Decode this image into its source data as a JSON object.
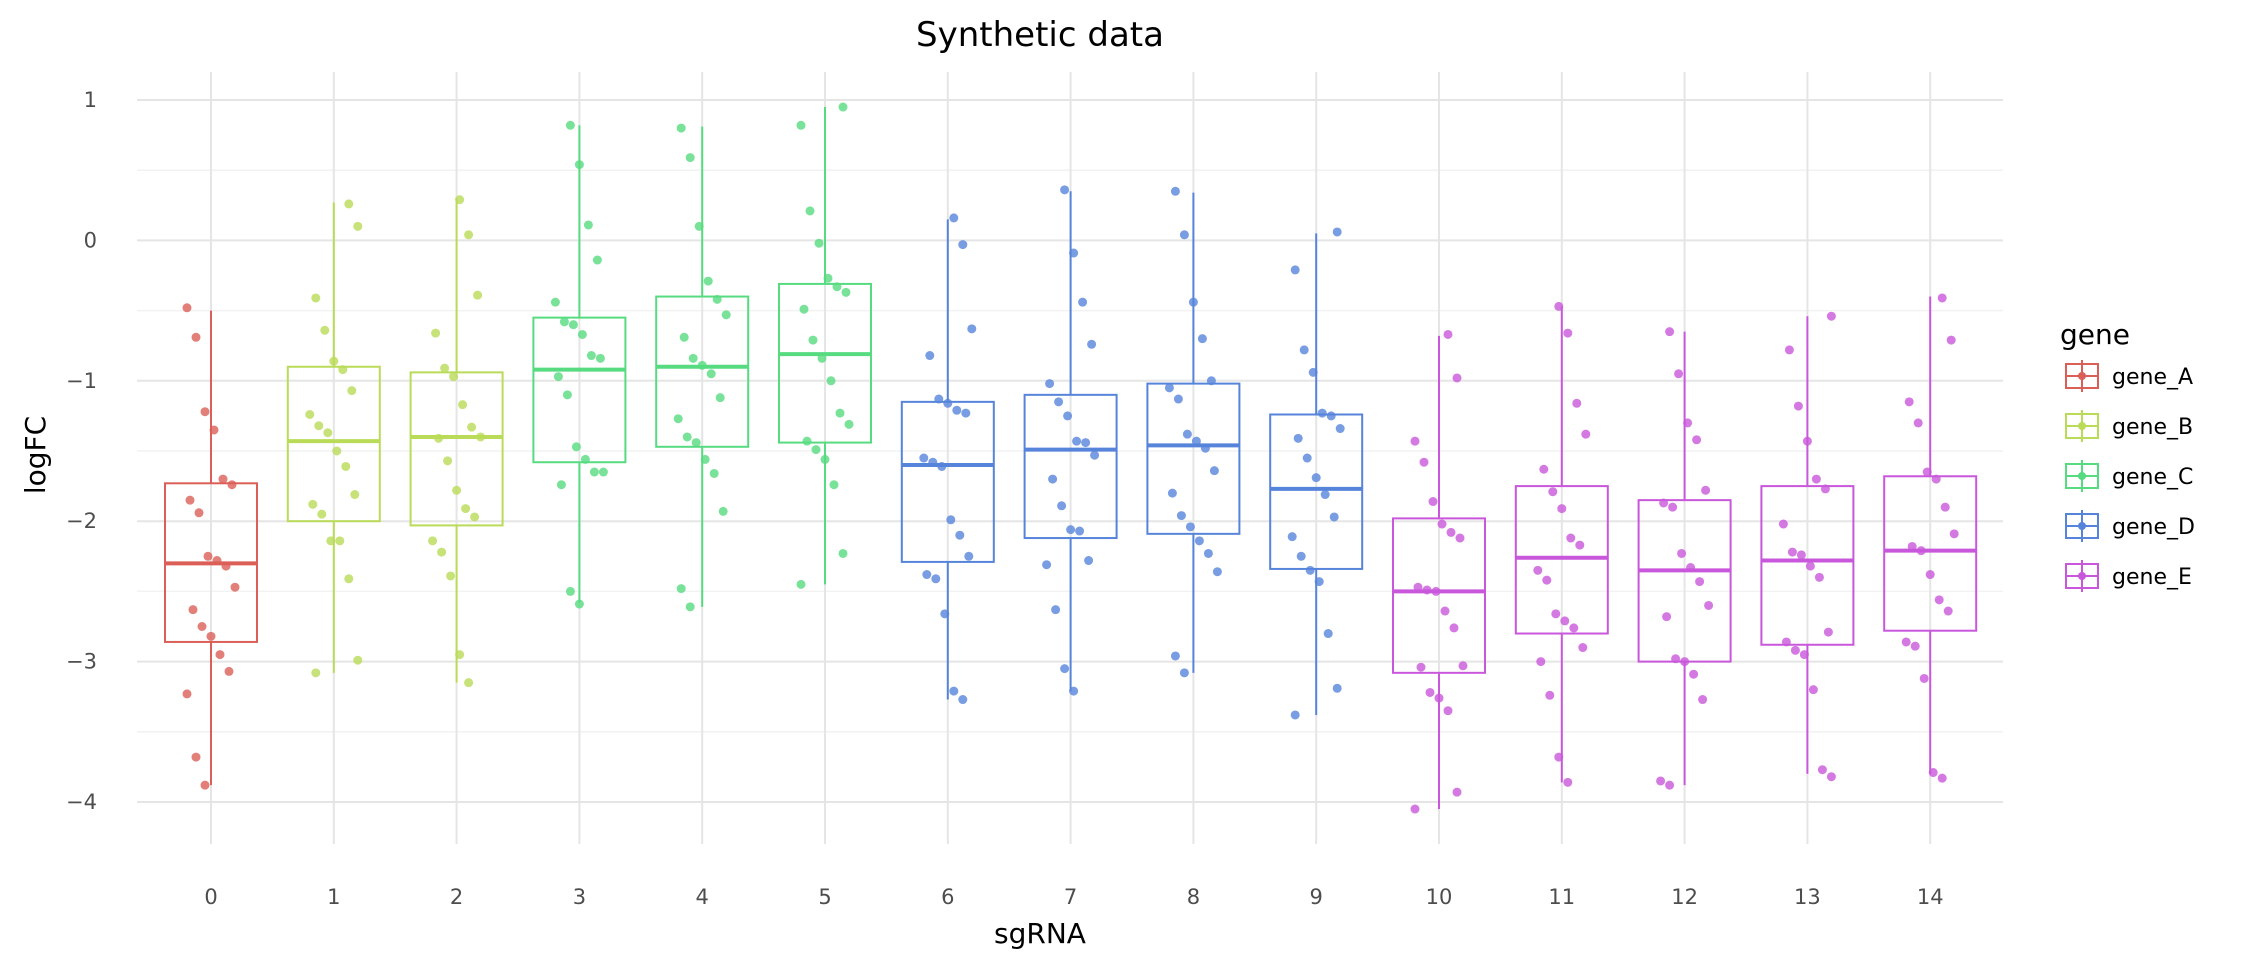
{
  "chart_data": {
    "type": "box",
    "title": "Synthetic data",
    "xlabel": "sgRNA",
    "ylabel": "logFC",
    "ylim": [
      -4.3,
      1.2
    ],
    "y_ticks": [
      1,
      0,
      -1,
      -2,
      -3,
      -4
    ],
    "y_tick_labels": [
      "1",
      "0",
      "−1",
      "−2",
      "−3",
      "−4"
    ],
    "grid": true,
    "legend": {
      "title": "gene",
      "position": "right"
    },
    "series": [
      {
        "name": "gene_A",
        "color": "#db5f57"
      },
      {
        "name": "gene_B",
        "color": "#b9db57"
      },
      {
        "name": "gene_C",
        "color": "#57db80"
      },
      {
        "name": "gene_D",
        "color": "#5784db"
      },
      {
        "name": "gene_E",
        "color": "#c957db"
      }
    ],
    "categories": [
      {
        "label": "0",
        "gene": "gene_A",
        "whisker_low": -3.88,
        "q1": -2.86,
        "median": -2.3,
        "q3": -1.73,
        "whisker_high": -0.5,
        "points": [
          -0.48,
          -0.69,
          -1.22,
          -1.35,
          -1.7,
          -1.74,
          -1.85,
          -1.94,
          -2.25,
          -2.28,
          -2.32,
          -2.47,
          -2.63,
          -2.75,
          -2.82,
          -2.95,
          -3.07,
          -3.23,
          -3.68,
          -3.88
        ]
      },
      {
        "label": "1",
        "gene": "gene_B",
        "whisker_low": -3.08,
        "q1": -2.0,
        "median": -1.43,
        "q3": -0.9,
        "whisker_high": 0.27,
        "points": [
          0.26,
          0.1,
          -0.41,
          -0.64,
          -0.86,
          -0.92,
          -1.07,
          -1.24,
          -1.32,
          -1.37,
          -1.5,
          -1.61,
          -1.81,
          -1.88,
          -1.95,
          -2.14,
          -2.14,
          -2.41,
          -2.99,
          -3.08
        ]
      },
      {
        "label": "2",
        "gene": "gene_B",
        "whisker_low": -3.15,
        "q1": -2.03,
        "median": -1.4,
        "q3": -0.94,
        "whisker_high": 0.3,
        "points": [
          0.29,
          0.04,
          -0.39,
          -0.66,
          -0.91,
          -0.97,
          -1.17,
          -1.33,
          -1.4,
          -1.41,
          -1.57,
          -1.78,
          -1.91,
          -1.97,
          -2.14,
          -2.22,
          -2.39,
          -2.95,
          -3.15
        ]
      },
      {
        "label": "3",
        "gene": "gene_C",
        "whisker_low": -2.58,
        "q1": -1.58,
        "median": -0.92,
        "q3": -0.55,
        "whisker_high": 0.82,
        "points": [
          0.82,
          0.54,
          0.11,
          -0.14,
          -0.44,
          -0.58,
          -0.6,
          -0.67,
          -0.82,
          -0.84,
          -0.97,
          -1.1,
          -1.47,
          -1.56,
          -1.65,
          -1.65,
          -1.74,
          -2.5,
          -2.59
        ]
      },
      {
        "label": "4",
        "gene": "gene_C",
        "whisker_low": -2.61,
        "q1": -1.47,
        "median": -0.9,
        "q3": -0.4,
        "whisker_high": 0.81,
        "points": [
          0.8,
          0.59,
          0.1,
          -0.29,
          -0.42,
          -0.53,
          -0.69,
          -0.84,
          -0.89,
          -0.95,
          -1.12,
          -1.27,
          -1.4,
          -1.44,
          -1.56,
          -1.66,
          -1.93,
          -2.48,
          -2.61
        ]
      },
      {
        "label": "5",
        "gene": "gene_C",
        "whisker_low": -2.45,
        "q1": -1.44,
        "median": -0.81,
        "q3": -0.31,
        "whisker_high": 0.95,
        "points": [
          0.95,
          0.82,
          0.21,
          -0.02,
          -0.27,
          -0.33,
          -0.37,
          -0.49,
          -0.71,
          -0.84,
          -1.0,
          -1.23,
          -1.31,
          -1.43,
          -1.49,
          -1.56,
          -1.74,
          -2.23,
          -2.45
        ]
      },
      {
        "label": "6",
        "gene": "gene_D",
        "whisker_low": -3.27,
        "q1": -2.29,
        "median": -1.6,
        "q3": -1.15,
        "whisker_high": 0.15,
        "points": [
          0.16,
          -0.03,
          -0.63,
          -0.82,
          -1.13,
          -1.16,
          -1.21,
          -1.23,
          -1.55,
          -1.58,
          -1.61,
          -1.99,
          -2.1,
          -2.25,
          -2.38,
          -2.41,
          -2.66,
          -3.21,
          -3.27
        ]
      },
      {
        "label": "7",
        "gene": "gene_D",
        "whisker_low": -3.21,
        "q1": -2.12,
        "median": -1.49,
        "q3": -1.1,
        "whisker_high": 0.35,
        "points": [
          0.36,
          -0.09,
          -0.44,
          -0.74,
          -1.02,
          -1.15,
          -1.25,
          -1.43,
          -1.44,
          -1.53,
          -1.7,
          -1.89,
          -2.06,
          -2.07,
          -2.28,
          -2.31,
          -2.63,
          -3.05,
          -3.21
        ]
      },
      {
        "label": "8",
        "gene": "gene_D",
        "whisker_low": -3.08,
        "q1": -2.09,
        "median": -1.46,
        "q3": -1.02,
        "whisker_high": 0.34,
        "points": [
          0.35,
          0.04,
          -0.44,
          -0.7,
          -1.0,
          -1.05,
          -1.13,
          -1.38,
          -1.43,
          -1.48,
          -1.64,
          -1.8,
          -1.96,
          -2.04,
          -2.14,
          -2.23,
          -2.36,
          -2.96,
          -3.08
        ]
      },
      {
        "label": "9",
        "gene": "gene_D",
        "whisker_low": -3.38,
        "q1": -2.34,
        "median": -1.77,
        "q3": -1.24,
        "whisker_high": 0.05,
        "points": [
          0.06,
          -0.21,
          -0.78,
          -0.94,
          -1.23,
          -1.25,
          -1.34,
          -1.41,
          -1.55,
          -1.69,
          -1.81,
          -1.97,
          -2.11,
          -2.25,
          -2.35,
          -2.43,
          -2.8,
          -3.19,
          -3.38
        ]
      },
      {
        "label": "10",
        "gene": "gene_E",
        "whisker_low": -4.05,
        "q1": -3.08,
        "median": -2.5,
        "q3": -1.98,
        "whisker_high": -0.68,
        "points": [
          -0.67,
          -0.98,
          -1.43,
          -1.58,
          -1.86,
          -2.02,
          -2.08,
          -2.12,
          -2.47,
          -2.49,
          -2.5,
          -2.64,
          -2.76,
          -3.03,
          -3.04,
          -3.22,
          -3.26,
          -3.35,
          -3.93,
          -4.05
        ]
      },
      {
        "label": "11",
        "gene": "gene_E",
        "whisker_low": -3.86,
        "q1": -2.8,
        "median": -2.26,
        "q3": -1.75,
        "whisker_high": -0.47,
        "points": [
          -0.47,
          -0.66,
          -1.16,
          -1.38,
          -1.63,
          -1.79,
          -1.91,
          -2.12,
          -2.17,
          -2.35,
          -2.42,
          -2.66,
          -2.71,
          -2.76,
          -2.9,
          -3.0,
          -3.24,
          -3.68,
          -3.86
        ]
      },
      {
        "label": "12",
        "gene": "gene_E",
        "whisker_low": -3.88,
        "q1": -3.0,
        "median": -2.35,
        "q3": -1.85,
        "whisker_high": -0.65,
        "points": [
          -0.65,
          -0.95,
          -1.3,
          -1.42,
          -1.78,
          -1.87,
          -1.9,
          -2.23,
          -2.33,
          -2.43,
          -2.6,
          -2.68,
          -2.98,
          -3.0,
          -3.09,
          -3.27,
          -3.85,
          -3.88
        ]
      },
      {
        "label": "13",
        "gene": "gene_E",
        "whisker_low": -3.8,
        "q1": -2.88,
        "median": -2.28,
        "q3": -1.75,
        "whisker_high": -0.54,
        "points": [
          -0.54,
          -0.78,
          -1.18,
          -1.43,
          -1.7,
          -1.77,
          -2.02,
          -2.22,
          -2.24,
          -2.32,
          -2.4,
          -2.79,
          -2.86,
          -2.92,
          -2.95,
          -3.2,
          -3.77,
          -3.82
        ]
      },
      {
        "label": "14",
        "gene": "gene_E",
        "whisker_low": -3.8,
        "q1": -2.78,
        "median": -2.21,
        "q3": -1.68,
        "whisker_high": -0.4,
        "points": [
          -0.41,
          -0.71,
          -1.15,
          -1.3,
          -1.65,
          -1.7,
          -1.9,
          -2.09,
          -2.18,
          -2.21,
          -2.38,
          -2.56,
          -2.64,
          -2.86,
          -2.89,
          -3.12,
          -3.79,
          -3.83
        ]
      }
    ]
  }
}
